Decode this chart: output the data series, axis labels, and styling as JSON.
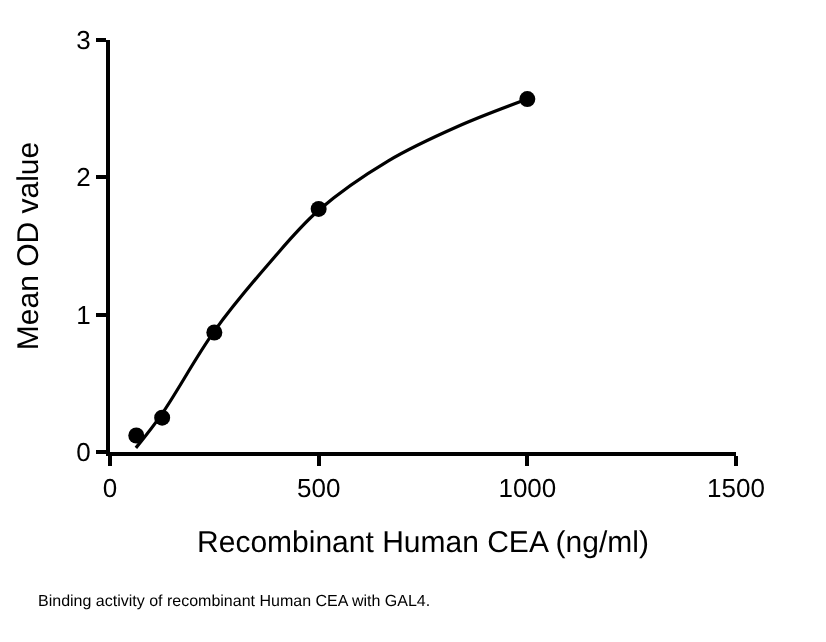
{
  "chart_data": {
    "type": "scatter",
    "xlabel": "Recombinant Human CEA (ng/ml)",
    "ylabel": "Mean OD value",
    "annotations": [
      "Binding activity of recombinant Human CEA with GAL4."
    ],
    "xlim": [
      0,
      1500
    ],
    "xticks": [
      0,
      500,
      1000,
      1500
    ],
    "ylim": [
      0,
      3
    ],
    "yticks": [
      0,
      1,
      2,
      3
    ],
    "series": [
      {
        "color": "#000000",
        "marker": "circle",
        "x": [
          63,
          125,
          250,
          500,
          1000
        ],
        "values": [
          0.12,
          0.25,
          0.87,
          1.77,
          2.57
        ]
      },
      {
        "type": "line",
        "color": "#000000",
        "marker": "none",
        "line_style": "solid",
        "x": [
          62,
          125,
          250,
          383,
          500,
          667,
          833,
          1000
        ],
        "values": [
          0.03,
          0.28,
          0.88,
          1.38,
          1.76,
          2.12,
          2.37,
          2.57
        ]
      }
    ]
  }
}
